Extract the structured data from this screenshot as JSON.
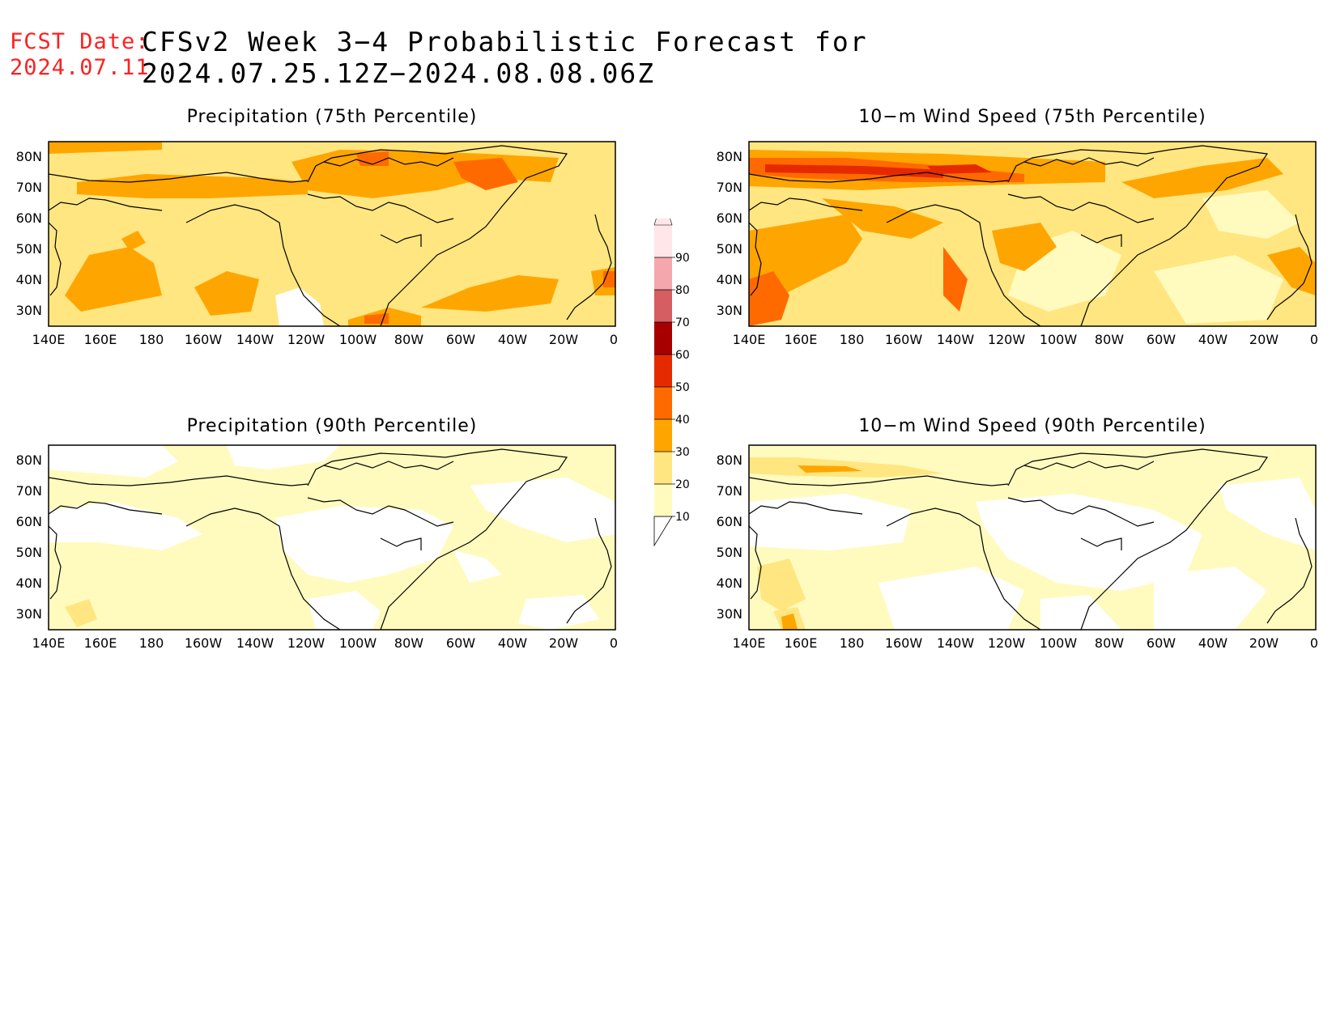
{
  "header": {
    "fcst_label": "FCST Date:",
    "fcst_date": "2024.07.11",
    "title": "CFSv2 Week 3−4 Probabilistic Forecast for 2024.07.25.12Z−2024.08.08.06Z"
  },
  "axes": {
    "lon_ticks": [
      "140E",
      "160E",
      "180",
      "160W",
      "140W",
      "120W",
      "100W",
      "80W",
      "60W",
      "40W",
      "20W",
      "0"
    ],
    "lat_ticks": [
      "30N",
      "40N",
      "50N",
      "60N",
      "70N",
      "80N"
    ],
    "lon_range": [
      140,
      360
    ],
    "lat_range": [
      25,
      85
    ]
  },
  "panels": [
    {
      "id": "precip-75",
      "title": "Precipitation (75th Percentile)"
    },
    {
      "id": "wind-75",
      "title": "10−m Wind Speed (75th Percentile)"
    },
    {
      "id": "precip-90",
      "title": "Precipitation (90th Percentile)"
    },
    {
      "id": "wind-90",
      "title": "10−m Wind Speed (90th Percentile)"
    }
  ],
  "colorbar": {
    "levels": [
      "10",
      "20",
      "30",
      "40",
      "50",
      "60",
      "70",
      "80",
      "90"
    ],
    "colors": [
      "#fffbbf",
      "#ffe680",
      "#ffa500",
      "#ff6a00",
      "#e62a00",
      "#a80000",
      "#d45e62",
      "#f4a8ad",
      "#ffe6e8"
    ]
  }
}
